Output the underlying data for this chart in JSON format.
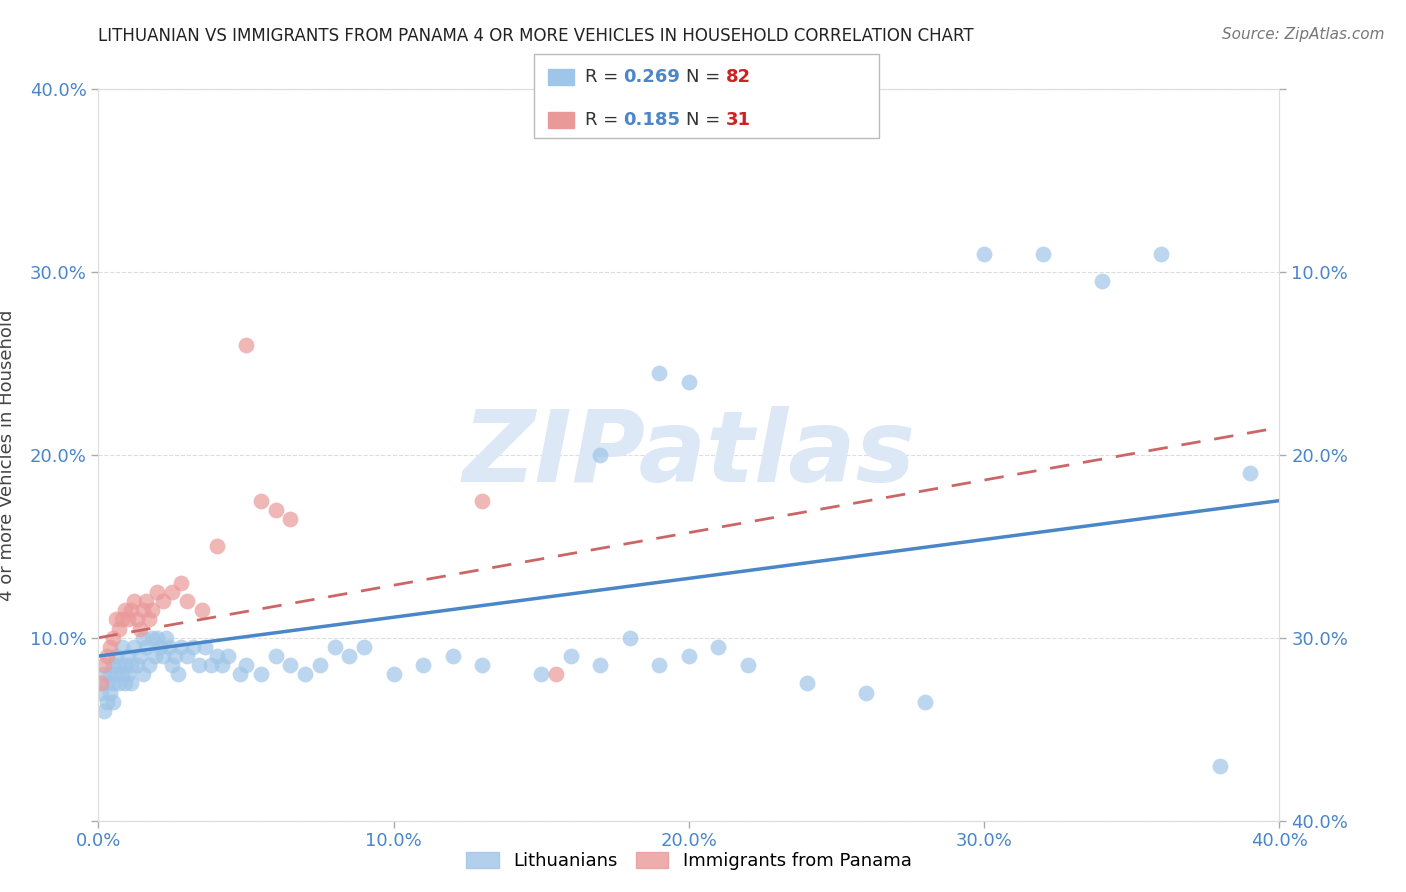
{
  "title": "LITHUANIAN VS IMMIGRANTS FROM PANAMA 4 OR MORE VEHICLES IN HOUSEHOLD CORRELATION CHART",
  "source": "Source: ZipAtlas.com",
  "ylabel": "4 or more Vehicles in Household",
  "xlim": [
    0.0,
    0.4
  ],
  "ylim": [
    0.0,
    0.4
  ],
  "xticks": [
    0.0,
    0.1,
    0.2,
    0.3,
    0.4
  ],
  "yticks": [
    0.0,
    0.1,
    0.2,
    0.3,
    0.4
  ],
  "xticklabels": [
    "0.0%",
    "10.0%",
    "20.0%",
    "30.0%",
    "40.0%"
  ],
  "yticklabels": [
    "",
    "10.0%",
    "20.0%",
    "30.0%",
    "40.0%"
  ],
  "right_yticklabels": [
    "40.0%",
    "30.0%",
    "20.0%",
    "10.0%",
    ""
  ],
  "legend_label1": "Lithuanians",
  "legend_label2": "Immigrants from Panama",
  "R1": "0.269",
  "N1": "82",
  "R2": "0.185",
  "N2": "31",
  "blue_color": "#9fc5e8",
  "pink_color": "#ea9999",
  "line_blue": "#4a86c8",
  "line_pink_color": "#cc6666",
  "watermark_color": "#dce8f5",
  "title_color": "#222222",
  "axis_label_color": "#4a86c8",
  "grid_color": "#dddddd",
  "blue_x": [
    0.001,
    0.002,
    0.002,
    0.003,
    0.003,
    0.004,
    0.004,
    0.005,
    0.005,
    0.005,
    0.006,
    0.006,
    0.007,
    0.007,
    0.008,
    0.008,
    0.009,
    0.009,
    0.01,
    0.01,
    0.011,
    0.011,
    0.012,
    0.013,
    0.014,
    0.015,
    0.015,
    0.016,
    0.017,
    0.018,
    0.019,
    0.02,
    0.021,
    0.022,
    0.023,
    0.024,
    0.025,
    0.026,
    0.027,
    0.028,
    0.03,
    0.032,
    0.034,
    0.036,
    0.038,
    0.04,
    0.042,
    0.044,
    0.048,
    0.05,
    0.055,
    0.06,
    0.065,
    0.07,
    0.075,
    0.08,
    0.085,
    0.09,
    0.1,
    0.11,
    0.12,
    0.13,
    0.15,
    0.16,
    0.17,
    0.18,
    0.19,
    0.2,
    0.21,
    0.22,
    0.24,
    0.26,
    0.28,
    0.3,
    0.32,
    0.34,
    0.36,
    0.38,
    0.39,
    0.17,
    0.19,
    0.2
  ],
  "blue_y": [
    0.07,
    0.08,
    0.06,
    0.075,
    0.065,
    0.08,
    0.07,
    0.085,
    0.075,
    0.065,
    0.09,
    0.08,
    0.085,
    0.075,
    0.095,
    0.08,
    0.085,
    0.075,
    0.09,
    0.08,
    0.085,
    0.075,
    0.095,
    0.085,
    0.09,
    0.1,
    0.08,
    0.095,
    0.085,
    0.1,
    0.09,
    0.1,
    0.095,
    0.09,
    0.1,
    0.095,
    0.085,
    0.09,
    0.08,
    0.095,
    0.09,
    0.095,
    0.085,
    0.095,
    0.085,
    0.09,
    0.085,
    0.09,
    0.08,
    0.085,
    0.08,
    0.09,
    0.085,
    0.08,
    0.085,
    0.095,
    0.09,
    0.095,
    0.08,
    0.085,
    0.09,
    0.085,
    0.08,
    0.09,
    0.085,
    0.1,
    0.085,
    0.09,
    0.095,
    0.085,
    0.075,
    0.07,
    0.065,
    0.31,
    0.31,
    0.295,
    0.31,
    0.03,
    0.19,
    0.2,
    0.245,
    0.24
  ],
  "pink_x": [
    0.001,
    0.002,
    0.003,
    0.004,
    0.005,
    0.006,
    0.007,
    0.008,
    0.009,
    0.01,
    0.011,
    0.012,
    0.013,
    0.014,
    0.015,
    0.016,
    0.017,
    0.018,
    0.02,
    0.022,
    0.025,
    0.028,
    0.03,
    0.035,
    0.04,
    0.05,
    0.055,
    0.06,
    0.065,
    0.13,
    0.155
  ],
  "pink_y": [
    0.075,
    0.085,
    0.09,
    0.095,
    0.1,
    0.11,
    0.105,
    0.11,
    0.115,
    0.11,
    0.115,
    0.12,
    0.11,
    0.105,
    0.115,
    0.12,
    0.11,
    0.115,
    0.125,
    0.12,
    0.125,
    0.13,
    0.12,
    0.115,
    0.15,
    0.26,
    0.175,
    0.17,
    0.165,
    0.175,
    0.08
  ],
  "blue_line_x": [
    0.0,
    0.4
  ],
  "blue_line_y": [
    0.09,
    0.175
  ],
  "pink_line_x": [
    0.0,
    0.4
  ],
  "pink_line_y": [
    0.1,
    0.215
  ]
}
